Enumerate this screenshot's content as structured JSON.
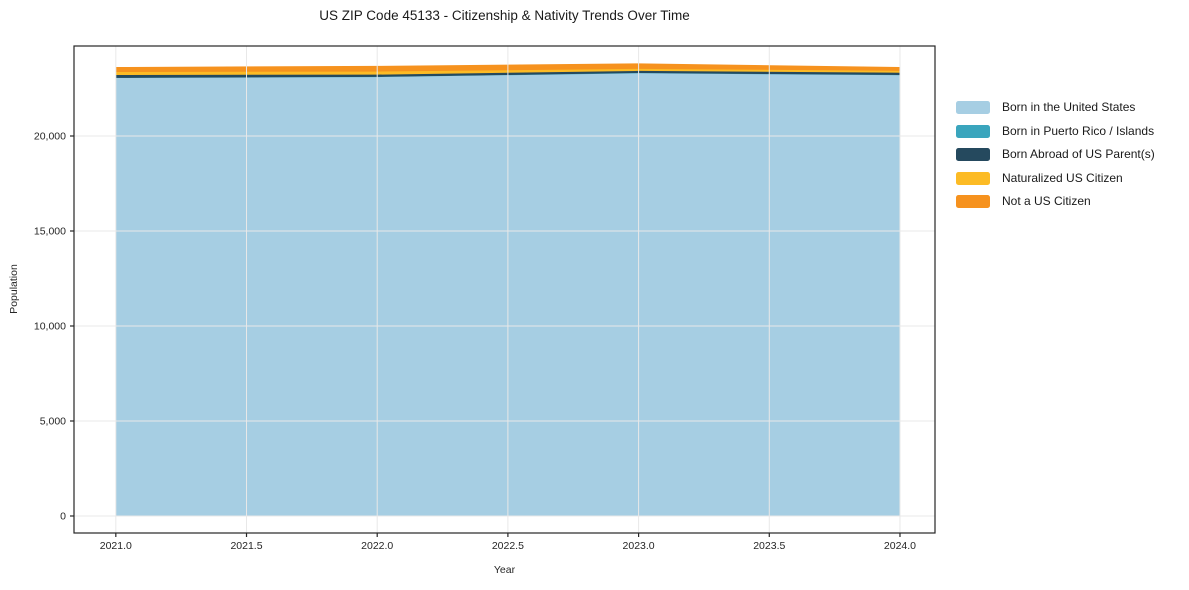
{
  "figure": {
    "background": "#ffffff"
  },
  "chart_data": {
    "type": "area",
    "stacked": true,
    "title": "US ZIP Code 45133 - Citizenship & Nativity Trends Over Time",
    "xlabel": "Year",
    "ylabel": "Population",
    "x": [
      2021,
      2022,
      2023,
      2024
    ],
    "series": [
      {
        "name": "Born in the United States",
        "color": "#a6cee3",
        "values": [
          23050,
          23100,
          23300,
          23200
        ]
      },
      {
        "name": "Born in Puerto Rico / Islands",
        "color": "#3aa5bd",
        "values": [
          10,
          10,
          15,
          10
        ]
      },
      {
        "name": "Born Abroad of US Parent(s)",
        "color": "#25495e",
        "values": [
          150,
          120,
          110,
          120
        ]
      },
      {
        "name": "Naturalized US Citizen",
        "color": "#fcbb25",
        "values": [
          160,
          160,
          110,
          100
        ]
      },
      {
        "name": "Not a US Citizen",
        "color": "#f6921e",
        "values": [
          260,
          300,
          290,
          200
        ]
      }
    ],
    "xlim": [
      2020.84,
      2024.134
    ],
    "ylim": [
      -895,
      24737
    ],
    "x_ticks": [
      2021.0,
      2021.5,
      2022.0,
      2022.5,
      2023.0,
      2023.5,
      2024.0
    ],
    "x_tick_labels": [
      "2021.0",
      "2021.5",
      "2022.0",
      "2022.5",
      "2023.0",
      "2023.5",
      "2024.0"
    ],
    "y_ticks": [
      0,
      5000,
      10000,
      15000,
      20000
    ],
    "y_tick_labels": [
      "0",
      "5,000",
      "10,000",
      "15,000",
      "20,000"
    ],
    "grid": true,
    "legend_position": "right of plot, vertical"
  },
  "colors": {
    "grid": "#e8e8e8",
    "axis": "#262626",
    "text": "#1a1a1a",
    "background": "#ffffff"
  }
}
